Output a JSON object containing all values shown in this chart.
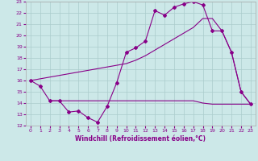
{
  "bg_color": "#cce8e8",
  "grid_color": "#aacccc",
  "line_color": "#880088",
  "xlabel": "Windchill (Refroidissement éolien,°C)",
  "xlim": [
    -0.5,
    23.5
  ],
  "ylim": [
    12,
    23
  ],
  "yticks": [
    12,
    13,
    14,
    15,
    16,
    17,
    18,
    19,
    20,
    21,
    22,
    23
  ],
  "xticks": [
    0,
    1,
    2,
    3,
    4,
    5,
    6,
    7,
    8,
    9,
    10,
    11,
    12,
    13,
    14,
    15,
    16,
    17,
    18,
    19,
    20,
    21,
    22,
    23
  ],
  "line1_x": [
    0,
    1,
    2,
    3,
    4,
    5,
    6,
    7,
    8,
    9,
    10,
    11,
    12,
    13,
    14,
    15,
    16,
    17,
    18,
    19,
    20,
    21,
    22,
    23
  ],
  "line1_y": [
    16.0,
    15.5,
    14.2,
    14.2,
    13.2,
    13.3,
    12.7,
    12.3,
    13.7,
    15.8,
    18.5,
    18.9,
    19.5,
    22.2,
    21.8,
    22.5,
    22.8,
    23.0,
    22.7,
    20.4,
    20.4,
    18.5,
    15.0,
    13.9
  ],
  "line2_x": [
    0,
    10,
    11,
    12,
    13,
    14,
    15,
    16,
    17,
    18,
    19,
    20,
    21,
    22,
    23
  ],
  "line2_y": [
    16.0,
    17.5,
    17.8,
    18.2,
    18.7,
    19.2,
    19.7,
    20.2,
    20.7,
    21.5,
    21.5,
    20.4,
    18.5,
    15.0,
    13.9
  ],
  "line3_x": [
    2,
    3,
    10,
    11,
    12,
    13,
    14,
    15,
    16,
    17,
    18,
    19,
    20,
    21,
    22,
    23
  ],
  "line3_y": [
    14.2,
    14.2,
    14.2,
    14.2,
    14.2,
    14.2,
    14.2,
    14.2,
    14.2,
    14.2,
    14.0,
    13.9,
    13.9,
    13.9,
    13.9,
    13.9
  ]
}
